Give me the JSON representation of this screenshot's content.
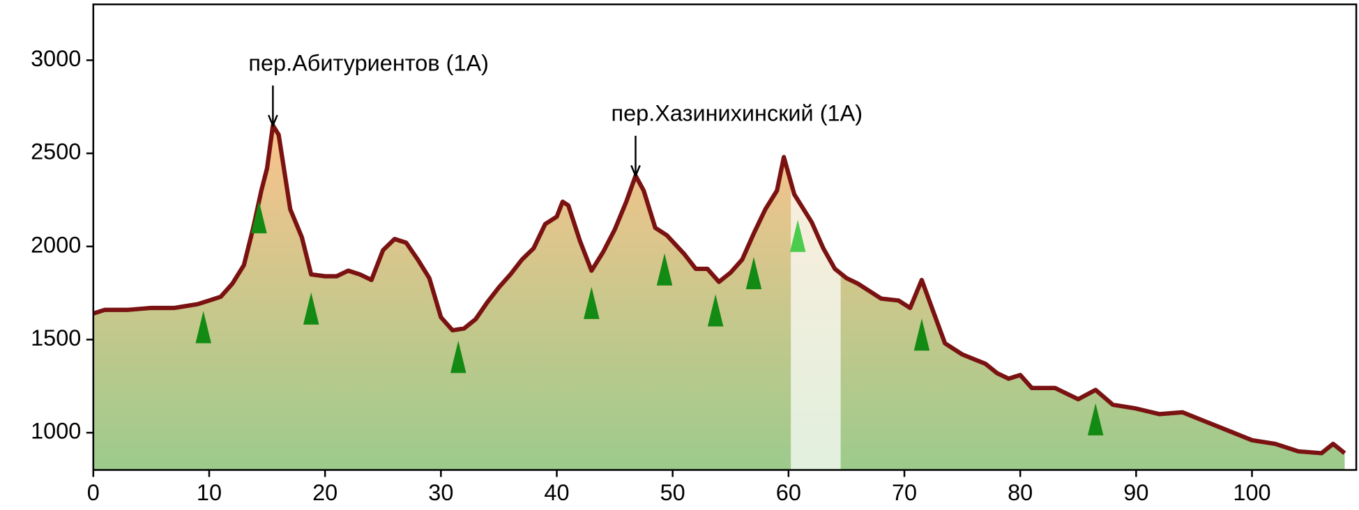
{
  "chart_data": {
    "type": "area",
    "x": [
      0,
      1,
      3,
      5,
      7,
      9,
      10,
      11,
      12,
      13,
      13.8,
      14.5,
      15,
      15.5,
      16,
      17,
      18,
      18.8,
      20,
      21,
      22,
      23,
      24,
      25,
      26,
      27,
      28,
      29,
      30,
      31,
      32,
      33,
      34,
      35,
      36,
      37,
      38,
      39,
      40,
      40.5,
      41,
      42,
      43,
      44,
      45,
      46,
      46.8,
      47.5,
      48.5,
      49.5,
      51,
      52,
      53,
      54,
      55,
      56,
      57,
      58,
      59,
      59.6,
      60.5,
      62,
      63,
      64,
      65,
      66,
      68,
      69.5,
      70.5,
      71.5,
      72.5,
      73.5,
      75,
      77,
      78,
      79,
      80,
      81,
      83,
      85,
      86.5,
      88,
      90,
      92,
      94,
      96,
      98,
      100,
      102,
      104,
      106,
      107,
      108
    ],
    "values": [
      1640,
      1660,
      1660,
      1670,
      1670,
      1690,
      1710,
      1730,
      1800,
      1900,
      2100,
      2300,
      2420,
      2650,
      2600,
      2200,
      2050,
      1850,
      1840,
      1840,
      1870,
      1850,
      1820,
      1980,
      2040,
      2020,
      1930,
      1830,
      1620,
      1550,
      1560,
      1610,
      1700,
      1780,
      1850,
      1930,
      1990,
      2120,
      2160,
      2240,
      2220,
      2030,
      1870,
      1970,
      2090,
      2240,
      2380,
      2300,
      2100,
      2060,
      1960,
      1880,
      1880,
      1810,
      1860,
      1930,
      2070,
      2200,
      2300,
      2480,
      2280,
      2130,
      1990,
      1880,
      1830,
      1800,
      1720,
      1710,
      1670,
      1820,
      1650,
      1480,
      1420,
      1370,
      1320,
      1290,
      1310,
      1240,
      1240,
      1180,
      1230,
      1150,
      1130,
      1100,
      1110,
      1060,
      1010,
      960,
      940,
      900,
      890,
      940,
      890
    ],
    "color": "#7a1212",
    "markers": {
      "x": [
        9.5,
        14.3,
        18.8,
        31.5,
        43,
        49.3,
        53.7,
        57,
        60.8,
        71.5,
        86.5
      ],
      "y": [
        1560,
        2150,
        1660,
        1400,
        1690,
        1870,
        1650,
        1850,
        2050,
        1520,
        1065
      ]
    },
    "highlight": [
      60.2,
      64.5
    ],
    "annotations": [
      {
        "text": "пер.Абитуриентов (1А)",
        "x": 15.5,
        "y": 2640
      },
      {
        "text": "пер.Хазинихинский (1А)",
        "x": 46.8,
        "y": 2370
      }
    ],
    "xlim": [
      0,
      109
    ],
    "ylim": [
      800,
      3300
    ],
    "xticks": [
      0,
      10,
      20,
      30,
      40,
      50,
      60,
      70,
      80,
      90,
      100
    ],
    "yticks": [
      1000,
      1500,
      2000,
      2500,
      3000
    ]
  }
}
